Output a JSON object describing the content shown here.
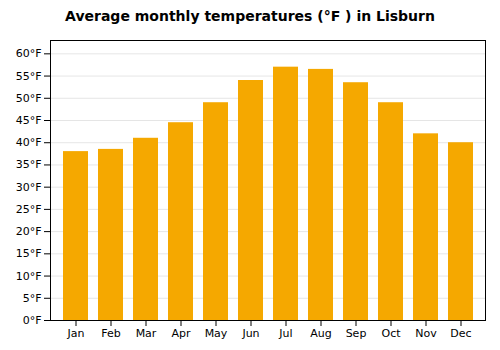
{
  "chart_data": {
    "type": "bar",
    "title": "Average monthly temperatures (°F ) in Lisburn",
    "categories": [
      "Jan",
      "Feb",
      "Mar",
      "Apr",
      "May",
      "Jun",
      "Jul",
      "Aug",
      "Sep",
      "Oct",
      "Nov",
      "Dec"
    ],
    "values": [
      38,
      38.5,
      41,
      44.5,
      49,
      54,
      57,
      56.5,
      53.5,
      49,
      42,
      40
    ],
    "color": "#F5A800",
    "ylim": [
      0,
      63
    ],
    "yticks": [
      {
        "value": 0,
        "label": "0°F"
      },
      {
        "value": 5,
        "label": "5°F"
      },
      {
        "value": 10,
        "label": "10°F"
      },
      {
        "value": 15,
        "label": "15°F"
      },
      {
        "value": 20,
        "label": "20°F"
      },
      {
        "value": 25,
        "label": "25°F"
      },
      {
        "value": 30,
        "label": "30°F"
      },
      {
        "value": 35,
        "label": "35°F"
      },
      {
        "value": 40,
        "label": "40°F"
      },
      {
        "value": 45,
        "label": "45°F"
      },
      {
        "value": 50,
        "label": "50°F"
      },
      {
        "value": 55,
        "label": "55°F"
      },
      {
        "value": 60,
        "label": "60°F"
      }
    ],
    "grid": true
  }
}
